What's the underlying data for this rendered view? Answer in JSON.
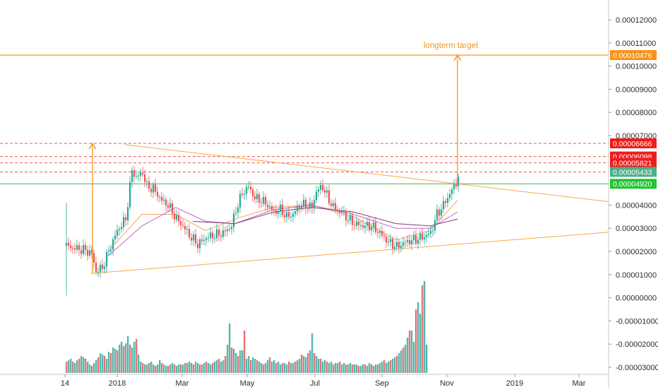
{
  "chart_data": {
    "type": "candlestick",
    "title": "",
    "xlabel": "",
    "ylabel": "",
    "x_tick_labels": [
      "14",
      "2018",
      "Mar",
      "May",
      "Jul",
      "Sep",
      "Nov",
      "2019",
      "Mar"
    ],
    "y_tick_labels": [
      "0.00012000",
      "0.00011000",
      "0.00010000",
      "0.00009000",
      "0.00008000",
      "0.00007000",
      "0.00004000",
      "0.00003000",
      "0.00002000",
      "0.00001000",
      "0.00000000",
      "-0.00001000",
      "-0.00002000",
      "-0.00003000"
    ],
    "ylim": [
      -3e-05,
      0.00012
    ],
    "grid": false,
    "price_tags": [
      {
        "label": "0.00010476",
        "value": 0.00010476,
        "color": "#f7931a"
      },
      {
        "label": "0.00006666",
        "value": 6.666e-05,
        "color": "#ef1c1c"
      },
      {
        "label": "0.00006098",
        "value": 6.098e-05,
        "color": "#ef1c1c"
      },
      {
        "label": "0.00005821",
        "value": 5.821e-05,
        "color": "#ef1c1c"
      },
      {
        "label": "0.00005433",
        "value": 5.433e-05,
        "color": "#4caf8a"
      },
      {
        "label": "0.00004920",
        "value": 4.92e-05,
        "color": "#22c52e"
      }
    ],
    "resistance_levels": [
      6.666e-05,
      6.098e-05,
      5.821e-05,
      5.433e-05
    ],
    "support_level": 4.92e-05,
    "target_level": 0.00010476,
    "annotations": [
      {
        "text": "longterm target",
        "value": 0.00010476
      }
    ],
    "price_series": {
      "name": "price",
      "points": [
        [
          0,
          2.25e-05
        ],
        [
          3,
          2.15e-05
        ],
        [
          6,
          2.1e-05
        ],
        [
          9,
          2.05e-05
        ],
        [
          12,
          1.9e-05
        ],
        [
          14,
          1.15e-05
        ],
        [
          17,
          1.3e-05
        ],
        [
          20,
          2e-05
        ],
        [
          24,
          2.9e-05
        ],
        [
          28,
          3.4e-05
        ],
        [
          31,
          5.5e-05
        ],
        [
          33,
          5.2e-05
        ],
        [
          36,
          5.4e-05
        ],
        [
          38,
          4.8e-05
        ],
        [
          41,
          4.7e-05
        ],
        [
          45,
          4.2e-05
        ],
        [
          48,
          4e-05
        ],
        [
          52,
          3.4e-05
        ],
        [
          55,
          3.1e-05
        ],
        [
          58,
          2.7e-05
        ],
        [
          62,
          2.3e-05
        ],
        [
          66,
          2.6e-05
        ],
        [
          70,
          2.7e-05
        ],
        [
          74,
          2.8e-05
        ],
        [
          78,
          3.1e-05
        ],
        [
          80,
          3.8e-05
        ],
        [
          83,
          4.5e-05
        ],
        [
          86,
          4.8e-05
        ],
        [
          89,
          4.3e-05
        ],
        [
          92,
          4.2e-05
        ],
        [
          95,
          4e-05
        ],
        [
          98,
          3.7e-05
        ],
        [
          101,
          3.8e-05
        ],
        [
          104,
          3.5e-05
        ],
        [
          107,
          3.6e-05
        ],
        [
          110,
          4e-05
        ],
        [
          113,
          4e-05
        ],
        [
          116,
          3.9e-05
        ],
        [
          118,
          4.6e-05
        ],
        [
          121,
          4.8e-05
        ],
        [
          124,
          4.2e-05
        ],
        [
          127,
          3.8e-05
        ],
        [
          130,
          3.7e-05
        ],
        [
          133,
          3.4e-05
        ],
        [
          136,
          3.2e-05
        ],
        [
          140,
          3.1e-05
        ],
        [
          144,
          3.1e-05
        ],
        [
          148,
          2.8e-05
        ],
        [
          152,
          2.4e-05
        ],
        [
          156,
          2.2e-05
        ],
        [
          160,
          2.4e-05
        ],
        [
          164,
          2.5e-05
        ],
        [
          168,
          2.6e-05
        ],
        [
          172,
          2.8e-05
        ],
        [
          175,
          3.6e-05
        ],
        [
          178,
          4e-05
        ],
        [
          181,
          4.5e-05
        ],
        [
          183,
          4.8e-05
        ],
        [
          185,
          5.2e-05
        ]
      ]
    },
    "moving_averages": [
      {
        "color": "#f4a460",
        "points": [
          [
            20,
            2e-05
          ],
          [
            36,
            3.6e-05
          ],
          [
            52,
            3.6e-05
          ],
          [
            66,
            2.9e-05
          ],
          [
            80,
            3.4e-05
          ],
          [
            98,
            3.9e-05
          ],
          [
            116,
            4e-05
          ],
          [
            136,
            3.5e-05
          ],
          [
            156,
            2.5e-05
          ],
          [
            172,
            2.9e-05
          ],
          [
            185,
            4.2e-05
          ]
        ]
      },
      {
        "color": "#d05fd0",
        "points": [
          [
            20,
            1.8e-05
          ],
          [
            36,
            3.1e-05
          ],
          [
            52,
            3.9e-05
          ],
          [
            66,
            3.3e-05
          ],
          [
            80,
            3.2e-05
          ],
          [
            98,
            3.8e-05
          ],
          [
            116,
            4e-05
          ],
          [
            136,
            3.6e-05
          ],
          [
            156,
            3e-05
          ],
          [
            172,
            3e-05
          ],
          [
            185,
            3.7e-05
          ]
        ]
      },
      {
        "color": "#7b3f6e",
        "points": [
          [
            60,
            3.3e-05
          ],
          [
            80,
            3.2e-05
          ],
          [
            98,
            3.7e-05
          ],
          [
            116,
            3.9e-05
          ],
          [
            136,
            3.7e-05
          ],
          [
            156,
            3.2e-05
          ],
          [
            172,
            3.1e-05
          ],
          [
            185,
            3.4e-05
          ]
        ]
      }
    ],
    "volume": [
      8,
      9,
      10,
      8,
      7,
      9,
      10,
      12,
      11,
      10,
      8,
      6,
      5,
      7,
      9,
      11,
      14,
      13,
      12,
      10,
      15,
      14,
      18,
      17,
      16,
      20,
      22,
      19,
      21,
      26,
      20,
      18,
      22,
      24,
      13,
      8,
      7,
      6,
      6,
      7,
      8,
      6,
      5,
      6,
      9,
      7,
      6,
      5,
      5,
      6,
      7,
      6,
      5,
      6,
      6,
      6,
      7,
      7,
      8,
      7,
      6,
      8,
      7,
      6,
      6,
      7,
      8,
      7,
      6,
      7,
      8,
      9,
      10,
      8,
      9,
      12,
      20,
      35,
      18,
      17,
      14,
      12,
      16,
      16,
      30,
      10,
      12,
      9,
      11,
      10,
      9,
      8,
      7,
      6,
      7,
      9,
      11,
      8,
      9,
      7,
      8,
      6,
      7,
      7,
      6,
      8,
      7,
      7,
      8,
      9,
      10,
      13,
      12,
      11,
      14,
      16,
      28,
      14,
      12,
      10,
      10,
      8,
      9,
      8,
      7,
      8,
      6,
      7,
      7,
      8,
      6,
      7,
      6,
      6,
      7,
      6,
      6,
      6,
      5,
      5,
      6,
      6,
      5,
      7,
      6,
      5,
      6,
      6,
      7,
      8,
      9,
      7,
      8,
      9,
      10,
      11,
      12,
      14,
      16,
      18,
      20,
      25,
      30,
      30,
      22,
      45,
      50,
      42,
      62,
      65,
      20
    ],
    "volume_colors": [
      "#3aa99f",
      "#e05a5a"
    ]
  }
}
